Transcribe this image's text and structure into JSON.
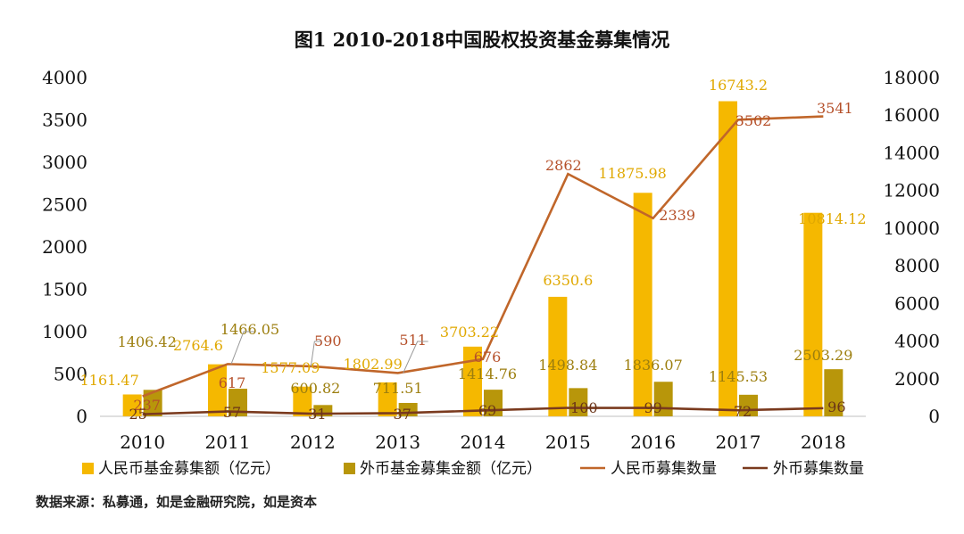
{
  "chart_data": {
    "type": "bar+line",
    "title": "图1  2010-2018中国股权投资基金募集情况",
    "categories": [
      "2010",
      "2011",
      "2012",
      "2013",
      "2014",
      "2015",
      "2016",
      "2017",
      "2018"
    ],
    "left_axis": {
      "min": 0,
      "max": 4000,
      "ticks": [
        "0",
        "500",
        "1000",
        "1500",
        "2000",
        "2500",
        "3000",
        "3500",
        "4000"
      ]
    },
    "right_axis": {
      "min": 0,
      "max": 18000,
      "ticks": [
        "0",
        "2000",
        "4000",
        "6000",
        "8000",
        "10000",
        "12000",
        "14000",
        "16000",
        "18000"
      ]
    },
    "series": [
      {
        "name": "人民币基金募集额（亿元）",
        "kind": "bar",
        "axis": "right",
        "color": "#F5B800",
        "values": [
          1161.47,
          2764.6,
          1577.09,
          1802.99,
          3703.22,
          6350.6,
          11875.98,
          16743.2,
          10814.12
        ],
        "labels": [
          "1161.47",
          "2764.6",
          "1577.09",
          "1802.99",
          "3703.22",
          "6350.6",
          "11875.98",
          "16743.2",
          "10814.12"
        ]
      },
      {
        "name": "外币基金募集金额（亿元）",
        "kind": "bar",
        "axis": "right",
        "color": "#B8960A",
        "values": [
          1406.42,
          1466.05,
          600.82,
          711.51,
          1414.76,
          1498.84,
          1836.07,
          1145.53,
          2503.29
        ],
        "labels": [
          "1406.42",
          "1466.05",
          "600.82",
          "711.51",
          "1414.76",
          "1498.84",
          "1836.07",
          "1145.53",
          "2503.29"
        ]
      },
      {
        "name": "人民币募集数量",
        "kind": "line",
        "axis": "left",
        "color": "#C0662A",
        "values": [
          237,
          617,
          590,
          511,
          676,
          2862,
          2339,
          3502,
          3541
        ],
        "labels": [
          "237",
          "617",
          "590",
          "511",
          "676",
          "2862",
          "2339",
          "3502",
          "3541"
        ]
      },
      {
        "name": "外币募集数量",
        "kind": "line",
        "axis": "left",
        "color": "#7A3A1E",
        "values": [
          25,
          57,
          31,
          37,
          69,
          100,
          99,
          72,
          96
        ],
        "labels": [
          "25",
          "57",
          "31",
          "37",
          "69",
          "100",
          "99",
          "72",
          "96"
        ]
      }
    ],
    "legend": [
      "人民币基金募集额（亿元）",
      "外币基金募集金额（亿元）",
      "人民币募集数量",
      "外币募集数量"
    ],
    "legend_position": "bottom"
  },
  "source_text": "数据来源：私募通，如是金融研究院，如是资本"
}
